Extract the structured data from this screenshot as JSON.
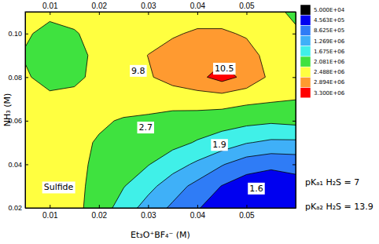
{
  "chart_data": {
    "type": "contour",
    "x_label": "Et₃O⁺BF₄⁻ (M)",
    "y_label": "NH₃ (M)",
    "xlim": [
      0.005,
      0.06
    ],
    "ylim": [
      0.02,
      0.11
    ],
    "xticks": [
      0.01,
      0.02,
      0.03,
      0.04,
      0.05
    ],
    "yticks": [
      0.02,
      0.04,
      0.06,
      0.08,
      {
        "value": 0.1,
        "label": "0.10"
      }
    ],
    "x": [
      0.005,
      0.01,
      0.015,
      0.02,
      0.025,
      0.03,
      0.035,
      0.04,
      0.045,
      0.05,
      0.055,
      0.06
    ],
    "y": [
      0.02,
      0.03,
      0.04,
      0.05,
      0.06,
      0.07,
      0.08,
      0.09,
      0.1,
      0.11
    ],
    "cells": [
      [
        2700000.0,
        2700000.0,
        2600000.0,
        2300000.0,
        1900000.0,
        1500000.0,
        1200000.0,
        900000.0,
        600000.0,
        500000.0,
        500000.0,
        600000.0
      ],
      [
        2700000.0,
        2700000.0,
        2600000.0,
        2350000.0,
        2100000.0,
        1800000.0,
        1450000.0,
        1150000.0,
        850000.0,
        650000.0,
        600000.0,
        700000.0
      ],
      [
        2700000.0,
        2700000.0,
        2600000.0,
        2400000.0,
        2250000.0,
        2100000.0,
        1850000.0,
        1600000.0,
        1300000.0,
        1050000.0,
        950000.0,
        1000000.0
      ],
      [
        2700000.0,
        2700000.0,
        2600000.0,
        2450000.0,
        2350000.0,
        2300000.0,
        2200000.0,
        2050000.0,
        1900000.0,
        1700000.0,
        1600000.0,
        1600000.0
      ],
      [
        2700000.0,
        2700000.0,
        2650000.0,
        2550000.0,
        2450000.0,
        2400000.0,
        2350000.0,
        2300000.0,
        2250000.0,
        2200000.0,
        2150000.0,
        2200000.0
      ],
      [
        2700000.0,
        2600000.0,
        2600000.0,
        2650000.0,
        2700000.0,
        2700000.0,
        2650000.0,
        2700000.0,
        2700000.0,
        2600000.0,
        2550000.0,
        2500000.0
      ],
      [
        2550000.0,
        2300000.0,
        2400000.0,
        2600000.0,
        2700000.0,
        2850000.0,
        3050000.0,
        3200000.0,
        3450000.0,
        3200000.0,
        2800000.0,
        2600000.0
      ],
      [
        2450000.0,
        2250000.0,
        2350000.0,
        2600000.0,
        2700000.0,
        2900000.0,
        3050000.0,
        3150000.0,
        3200000.0,
        3050000.0,
        2750000.0,
        2600000.0
      ],
      [
        2550000.0,
        2350000.0,
        2450000.0,
        2650000.0,
        2700000.0,
        2750000.0,
        2850000.0,
        2950000.0,
        2950000.0,
        2850000.0,
        2700000.0,
        2550000.0
      ],
      [
        2700000.0,
        2600000.0,
        2650000.0,
        2700000.0,
        2700000.0,
        2700000.0,
        2700000.0,
        2700000.0,
        2700000.0,
        2700000.0,
        2600000.0,
        2400000.0
      ]
    ],
    "levels": [
      50000,
      456300,
      862500,
      1269000,
      1675000,
      2081000,
      2488000,
      2894000,
      3300000
    ],
    "colors": [
      "#000000",
      "#0000f0",
      "#2f7cf6",
      "#3fb0f8",
      "#40f0e8",
      "#3fe23f",
      "#ffff40",
      "#ff9a30",
      "#ff0000"
    ],
    "colorbar_ticks": [
      {
        "value": 50000,
        "label": "5.000E+04"
      },
      {
        "value": 456300,
        "label": "4.563E+05"
      },
      {
        "value": 862500,
        "label": "8.625E+05"
      },
      {
        "value": 1269000,
        "label": "1.269E+06"
      },
      {
        "value": 1675000,
        "label": "1.675E+06"
      },
      {
        "value": 2081000,
        "label": "2.081E+06"
      },
      {
        "value": 2488000,
        "label": "2.488E+06"
      },
      {
        "value": 2894000,
        "label": "2.894E+06"
      },
      {
        "value": 3300000,
        "label": "3.300E+06"
      }
    ],
    "annotations": [
      {
        "text": "10.5",
        "x": 0.0455,
        "y": 0.084
      },
      {
        "text": "9.8",
        "x": 0.028,
        "y": 0.083
      },
      {
        "text": "2.7",
        "x": 0.0295,
        "y": 0.057
      },
      {
        "text": "1.9",
        "x": 0.0445,
        "y": 0.049
      },
      {
        "text": "1.6",
        "x": 0.052,
        "y": 0.029
      },
      {
        "text": "Sulfide",
        "x": 0.0118,
        "y": 0.0295
      }
    ],
    "notes": [
      "pKₐ₁ H₂S = 7",
      "pKₐ₂ H₂S = 13.9"
    ]
  }
}
